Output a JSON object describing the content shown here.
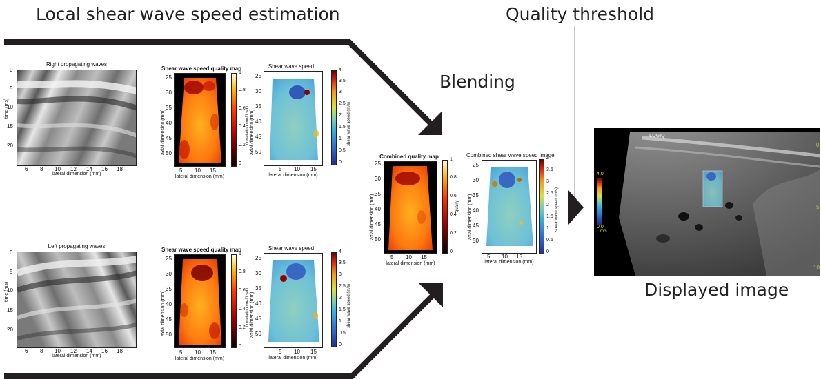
{
  "labels": {
    "local_estimation": "Local shear wave speed estimation",
    "quality_threshold": "Quality threshold",
    "blending": "Blending",
    "displayed_image": "Displayed image"
  },
  "panels": {
    "right_waves": {
      "title": "Right propagating waves",
      "xlabel": "lateral dimension (mm)",
      "ylabel": "time (ms)",
      "xticks": [
        "6",
        "8",
        "10",
        "12",
        "14",
        "16",
        "18"
      ],
      "yticks": [
        "0",
        "5",
        "10",
        "15",
        "20"
      ]
    },
    "left_waves": {
      "title": "Left propagating waves",
      "xlabel": "lateral dimension (mm)",
      "ylabel": "time (ms)",
      "xticks": [
        "6",
        "8",
        "10",
        "12",
        "14",
        "16",
        "18"
      ],
      "yticks": [
        "0",
        "5",
        "10",
        "15",
        "20"
      ]
    },
    "quality_map": {
      "title": "Shear wave speed quality map",
      "xlabel": "lateral dimension (mm)",
      "ylabel": "axial dimension (mm)",
      "xticks": [
        "5",
        "10",
        "15"
      ],
      "yticks": [
        "25",
        "30",
        "35",
        "40",
        "45",
        "50"
      ],
      "colorbar_label": "correlation coefficient",
      "colorbar_ticks": [
        "1",
        "0.8",
        "0.6",
        "0.4",
        "0.2",
        "0"
      ]
    },
    "speed_map": {
      "title": "Shear wave speed",
      "xlabel": "lateral dimension (mm)",
      "ylabel": "axial dimension (mm)",
      "xticks": [
        "5",
        "10",
        "15"
      ],
      "yticks": [
        "25",
        "30",
        "35",
        "40",
        "45",
        "50"
      ],
      "colorbar_label": "shear wave speed (m/s)",
      "colorbar_ticks": [
        "4",
        "3.5",
        "3",
        "2.5",
        "2",
        "1.5",
        "1",
        "0.5",
        "0"
      ]
    },
    "combined_quality": {
      "title": "Combined quality map",
      "xlabel": "lateral dimension (mm)",
      "ylabel": "axial dimension (mm)",
      "xticks": [
        "5",
        "10",
        "15"
      ],
      "yticks": [
        "25",
        "30",
        "35",
        "40",
        "45",
        "50"
      ],
      "colorbar_label": "quality",
      "colorbar_ticks": [
        "1",
        "0.8",
        "0.6",
        "0.4",
        "0.2",
        "0"
      ]
    },
    "combined_speed": {
      "title": "Combined shear wave speed image",
      "xlabel": "lateral dimension (mm)",
      "ylabel": "axial dimension (mm)",
      "xticks": [
        "5",
        "10",
        "15"
      ],
      "yticks": [
        "25",
        "30",
        "35",
        "40",
        "45",
        "50"
      ],
      "colorbar_label": "shear wave speed (m/s)",
      "colorbar_ticks": [
        "4",
        "3.5",
        "3",
        "2.5",
        "2",
        "1.5",
        "1",
        "0.5",
        "0"
      ]
    }
  },
  "ultrasound": {
    "brand": "LOGIQ",
    "scale_max": "4.0",
    "scale_min": "0.0",
    "scale_unit": "m/s",
    "edge_marks": [
      "0",
      "5",
      "10"
    ]
  },
  "colors": {
    "arrow": "#231f20",
    "quality_low": "#000000",
    "quality_high": "#ffff66",
    "speed_low": "#1f3a9c",
    "speed_high": "#7a0000"
  }
}
